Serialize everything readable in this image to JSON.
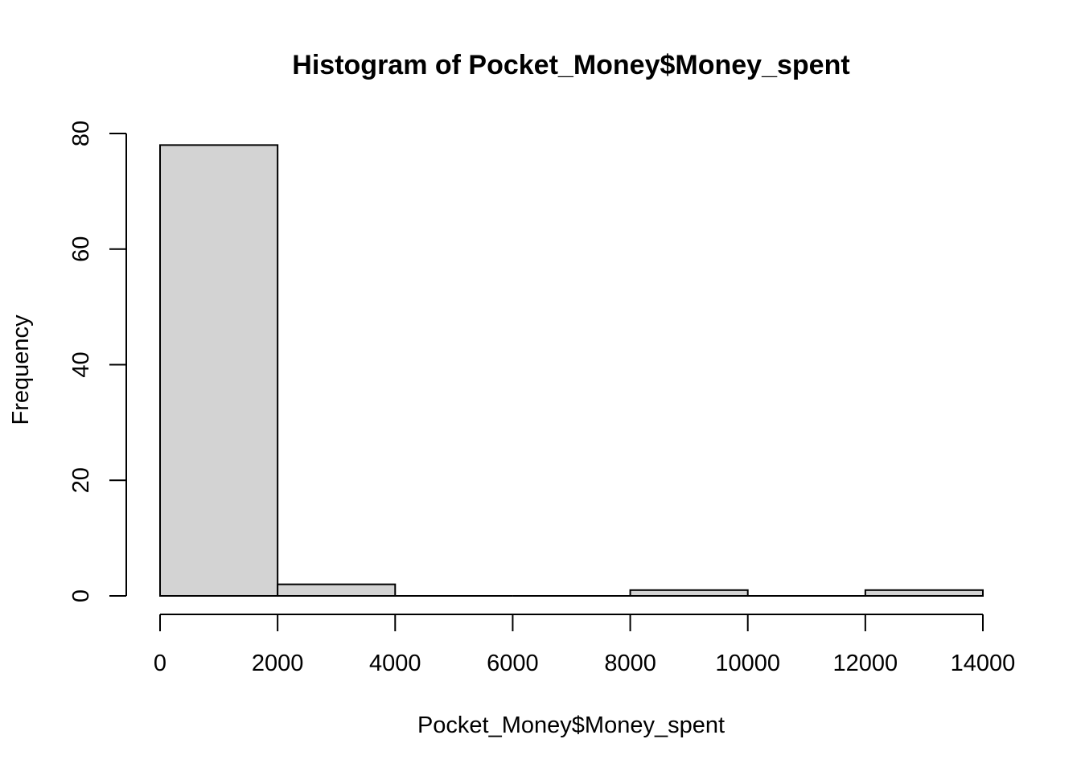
{
  "chart_data": {
    "type": "bar",
    "subtype": "histogram",
    "title": "Histogram of Pocket_Money$Money_spent",
    "xlabel": "Pocket_Money$Money_spent",
    "ylabel": "Frequency",
    "bins": [
      {
        "start": 0,
        "end": 2000,
        "count": 78
      },
      {
        "start": 2000,
        "end": 4000,
        "count": 2
      },
      {
        "start": 4000,
        "end": 6000,
        "count": 0
      },
      {
        "start": 6000,
        "end": 8000,
        "count": 0
      },
      {
        "start": 8000,
        "end": 10000,
        "count": 1
      },
      {
        "start": 10000,
        "end": 12000,
        "count": 0
      },
      {
        "start": 12000,
        "end": 14000,
        "count": 1
      }
    ],
    "xlim": [
      0,
      14000
    ],
    "ylim": [
      0,
      80
    ],
    "x_ticks": [
      0,
      2000,
      4000,
      6000,
      8000,
      10000,
      12000,
      14000
    ],
    "y_ticks": [
      0,
      20,
      40,
      60,
      80
    ],
    "grid": false,
    "bar_fill": "#d3d3d3",
    "bar_stroke": "#000000"
  }
}
